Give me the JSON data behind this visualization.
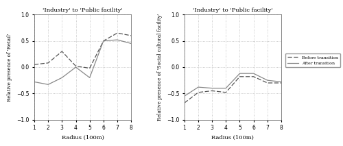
{
  "title": "'Industry' to 'Public facility'",
  "x": [
    1,
    2,
    3,
    4,
    5,
    6,
    7,
    8
  ],
  "left_before": [
    0.05,
    0.08,
    0.3,
    0.02,
    -0.02,
    0.5,
    0.65,
    0.6
  ],
  "left_after": [
    -0.28,
    -0.33,
    -0.2,
    0.0,
    -0.2,
    0.5,
    0.52,
    0.45
  ],
  "right_before": [
    -0.68,
    -0.48,
    -0.45,
    -0.48,
    -0.18,
    -0.18,
    -0.3,
    -0.3
  ],
  "right_after": [
    -0.55,
    -0.38,
    -0.4,
    -0.4,
    -0.12,
    -0.12,
    -0.25,
    -0.28
  ],
  "left_ylabel": "Relative presence of 'Retail'",
  "right_ylabel": "Relative presence of 'Social cultural facility'",
  "xlabel": "Radius (100m)",
  "ylim": [
    -1.0,
    1.0
  ],
  "yticks": [
    -1.0,
    -0.5,
    0.0,
    0.5,
    1.0
  ],
  "xticks": [
    1,
    2,
    3,
    4,
    5,
    6,
    7,
    8
  ],
  "legend_before": "Before transition",
  "legend_after": "After transition",
  "line_color_before": "#555555",
  "line_color_after": "#888888",
  "background": "#ffffff",
  "grid_color": "#bbbbbb"
}
